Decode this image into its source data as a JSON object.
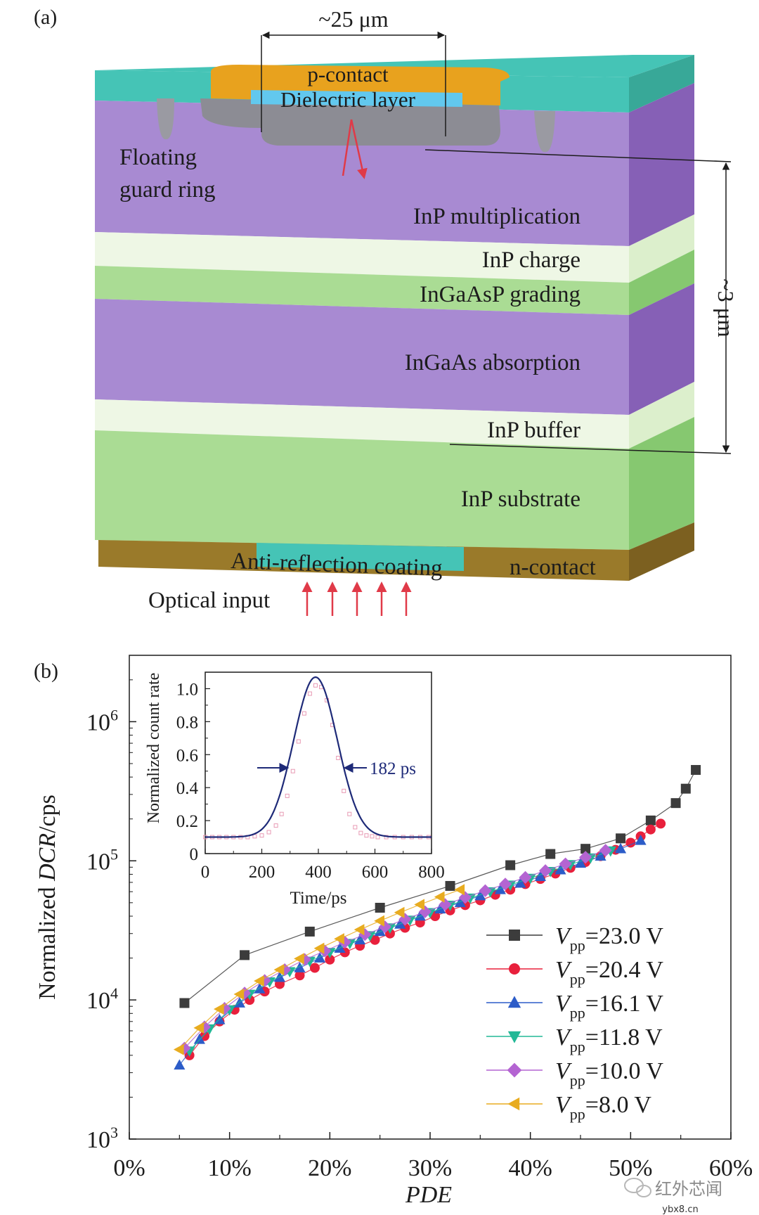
{
  "panel_a": {
    "label": "(a)",
    "width_label": "~25 μm",
    "thickness_label": "~3 μm",
    "p_contact": "p-contact",
    "dielectric": "Dielectric layer",
    "guard_ring": [
      "Floating",
      "guard ring"
    ],
    "layers": {
      "multiplication": "InP multiplication",
      "charge": "InP charge",
      "grading": "InGaAsP grading",
      "absorption": "InGaAs absorption",
      "buffer": "InP buffer",
      "substrate": "InP substrate"
    },
    "ar_coating": "Anti-reflection coating",
    "n_contact": "n-contact",
    "optical_input": "Optical input",
    "colors": {
      "top": "#45c4b6",
      "contact": "#e8a21e",
      "dielectric": "#62c8ee",
      "purple": "#a88ad2",
      "purple_side": "#8660b6",
      "light": "#eef7e5",
      "green": "#aadc94",
      "green_side": "#86c870",
      "brown": "#9a7a2a",
      "arrow": "#e03a48"
    }
  },
  "panel_b": {
    "label": "(b)",
    "ylabel_prefix": "Normalized ",
    "ylabel_italic": "DCR",
    "ylabel_suffix": "/cps",
    "xlabel": "PDE",
    "inset": {
      "ylabel": "Normalized count rate",
      "xlabel": "Time/ps",
      "fwhm_label": "182 ps"
    }
  },
  "watermark": {
    "name": "红外芯闻",
    "site": "ybx8.cn"
  },
  "chart_data": [
    {
      "type": "line",
      "title": "",
      "xlabel": "PDE",
      "ylabel": "Normalized DCR/cps",
      "xlim": [
        0,
        60
      ],
      "ylim": [
        1000,
        3000000
      ],
      "yscale": "log",
      "x_ticks": [
        0,
        10,
        20,
        30,
        40,
        50,
        60
      ],
      "x_tick_labels": [
        "0%",
        "10%",
        "20%",
        "30%",
        "40%",
        "50%",
        "60%"
      ],
      "y_ticks": [
        1000,
        10000,
        100000,
        1000000
      ],
      "legend_position": "bottom-right",
      "series": [
        {
          "name": "=23.0 V",
          "color": "#3c3c3c",
          "marker": "square",
          "x": [
            5.5,
            11.5,
            18.0,
            25.0,
            32.0,
            38.0,
            42.0,
            45.5,
            49.0,
            52.0,
            54.5,
            55.5,
            56.5
          ],
          "y": [
            9500,
            21000,
            31000,
            46000,
            66000,
            93000,
            112000,
            122000,
            145000,
            195000,
            260000,
            330000,
            450000
          ]
        },
        {
          "name": "=20.4 V",
          "color": "#e8203c",
          "marker": "circle",
          "x": [
            6,
            7.5,
            9,
            10.5,
            12,
            13.5,
            15,
            17,
            18.5,
            20,
            21.5,
            23,
            24.5,
            26,
            27.5,
            29,
            30.5,
            32,
            33.5,
            35,
            36.5,
            38,
            39.5,
            41,
            42.5,
            44,
            45.5,
            47,
            48.5,
            50,
            51,
            52,
            53
          ],
          "y": [
            4000,
            5500,
            7000,
            8500,
            10000,
            11500,
            13000,
            15000,
            17000,
            19500,
            22000,
            24500,
            27000,
            30000,
            33000,
            36000,
            40000,
            44000,
            48000,
            52000,
            57000,
            62000,
            68000,
            74000,
            81000,
            89000,
            98000,
            108000,
            120000,
            135000,
            150000,
            168000,
            185000
          ]
        },
        {
          "name": "=16.1 V",
          "color": "#2c5cc8",
          "marker": "triangle-up",
          "x": [
            5,
            7,
            9,
            11,
            13,
            15,
            17,
            19,
            21,
            23,
            25,
            27,
            29,
            31,
            33,
            35,
            37,
            39,
            41,
            43,
            45,
            47,
            49,
            51
          ],
          "y": [
            3400,
            5200,
            7200,
            9500,
            12000,
            14500,
            17000,
            20000,
            23500,
            27000,
            31000,
            35000,
            40000,
            45000,
            50000,
            56000,
            62000,
            69000,
            77000,
            86000,
            96000,
            108000,
            122000,
            140000
          ]
        },
        {
          "name": "=11.8 V",
          "color": "#22b896",
          "marker": "triangle-down",
          "x": [
            6,
            8,
            10,
            12,
            14,
            16,
            18,
            20,
            22,
            24,
            26,
            28,
            30,
            32,
            34,
            36,
            38,
            40,
            42,
            44,
            46,
            48
          ],
          "y": [
            4300,
            6200,
            8500,
            11000,
            13500,
            16000,
            19000,
            22000,
            25500,
            29000,
            33000,
            37500,
            42500,
            48000,
            54000,
            60000,
            67000,
            75000,
            84000,
            94000,
            105000,
            118000
          ]
        },
        {
          "name": "=10.0 V",
          "color": "#b464d2",
          "marker": "diamond",
          "x": [
            5.5,
            7.5,
            9.5,
            11.5,
            13.5,
            15.5,
            17.5,
            19.5,
            21.5,
            23.5,
            25.5,
            27.5,
            29.5,
            31.5,
            33.5,
            35.5,
            37.5,
            39.5,
            41.5,
            43.5,
            45.5,
            47.5
          ],
          "y": [
            4500,
            6400,
            8700,
            11200,
            13800,
            16500,
            19500,
            22500,
            26000,
            29500,
            33500,
            38000,
            43000,
            48500,
            54500,
            61000,
            68000,
            76000,
            85000,
            95000,
            106000,
            119000
          ]
        },
        {
          "name": "=8.0 V",
          "color": "#e8ac20",
          "marker": "triangle-left",
          "x": [
            5,
            7,
            9,
            11,
            13,
            15,
            17,
            19,
            21,
            23,
            25,
            27,
            29,
            31,
            33
          ],
          "y": [
            4400,
            6300,
            8600,
            11000,
            13700,
            16500,
            19800,
            23500,
            27500,
            32000,
            37000,
            42500,
            48500,
            55000,
            62000
          ]
        }
      ]
    },
    {
      "type": "line",
      "title": "inset",
      "xlabel": "Time/ps",
      "ylabel": "Normalized count rate",
      "xlim": [
        0,
        800
      ],
      "ylim": [
        0,
        1.1
      ],
      "x_ticks": [
        0,
        200,
        400,
        600,
        800
      ],
      "y_ticks": [
        0,
        0.2,
        0.4,
        0.6,
        0.8,
        1.0
      ],
      "y_tick_labels": [
        "0",
        "0.2",
        "0.4",
        "0.6",
        "0.8",
        "1.0"
      ],
      "annotation": "182 ps",
      "series": [
        {
          "name": "fit",
          "color": "#1e2a78",
          "style": "line",
          "baseline": 0.1,
          "peak_x": 390,
          "peak_y": 1.07,
          "fwhm": 182
        },
        {
          "name": "data",
          "color": "#e89ab4",
          "style": "open-square",
          "x": [
            0,
            25,
            50,
            75,
            100,
            125,
            150,
            175,
            200,
            225,
            250,
            270,
            290,
            310,
            330,
            350,
            370,
            390,
            410,
            430,
            450,
            470,
            490,
            510,
            530,
            550,
            570,
            590,
            610,
            640,
            670,
            700,
            730,
            760,
            790
          ],
          "y": [
            0.1,
            0.1,
            0.1,
            0.1,
            0.1,
            0.1,
            0.1,
            0.105,
            0.11,
            0.13,
            0.17,
            0.24,
            0.35,
            0.5,
            0.68,
            0.85,
            0.97,
            1.02,
            1.01,
            0.93,
            0.78,
            0.58,
            0.38,
            0.24,
            0.16,
            0.125,
            0.11,
            0.105,
            0.1,
            0.1,
            0.1,
            0.1,
            0.1,
            0.1,
            0.1
          ]
        }
      ]
    }
  ]
}
